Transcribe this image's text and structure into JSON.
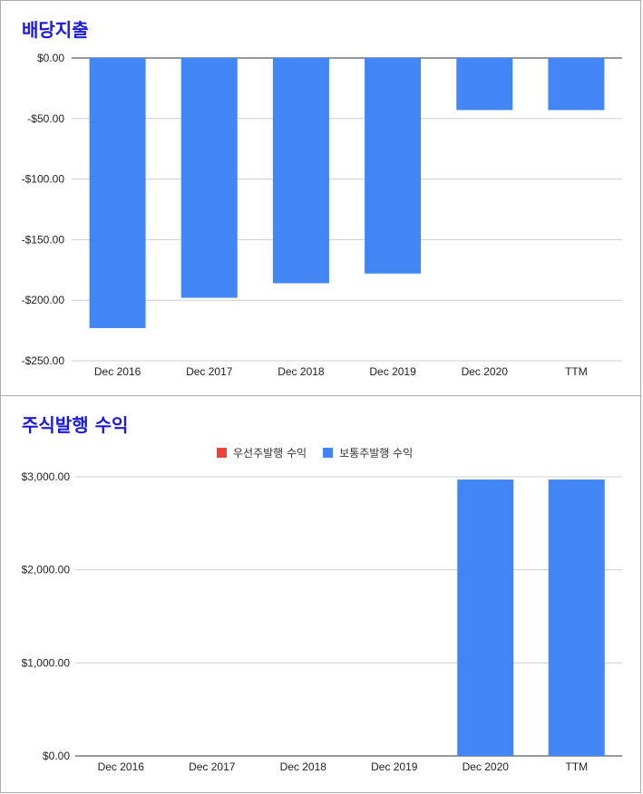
{
  "colors": {
    "title": "#1a1adc",
    "bar": "#4285f4",
    "preferred": "#ea4335",
    "grid": "#cccccc",
    "axis": "#333333"
  },
  "chart_data": [
    {
      "type": "bar",
      "title": "배당지출",
      "categories": [
        "Dec 2016",
        "Dec 2017",
        "Dec 2018",
        "Dec 2019",
        "Dec 2020",
        "TTM"
      ],
      "values": [
        -223,
        -198,
        -186,
        -178,
        -43,
        -43
      ],
      "ylim": [
        -250,
        0
      ],
      "yticks": [
        0,
        -50,
        -100,
        -150,
        -200,
        -250
      ],
      "ytick_labels": [
        "$0.00",
        "-$50.00",
        "-$100.00",
        "-$150.00",
        "-$200.00",
        "-$250.00"
      ],
      "xlabel": "",
      "ylabel": "",
      "grid": true
    },
    {
      "type": "bar",
      "title": "주식발행 수익",
      "categories": [
        "Dec 2016",
        "Dec 2017",
        "Dec 2018",
        "Dec 2019",
        "Dec 2020",
        "TTM"
      ],
      "series": [
        {
          "name": "우선주발행 수익",
          "values": [
            0,
            0,
            0,
            0,
            0,
            0
          ]
        },
        {
          "name": "보통주발행 수익",
          "values": [
            0,
            0,
            0,
            0,
            2970,
            2970
          ]
        }
      ],
      "ylim": [
        0,
        3000
      ],
      "yticks": [
        0,
        1000,
        2000,
        3000
      ],
      "ytick_labels": [
        "$0.00",
        "$1,000.00",
        "$2,000.00",
        "$3,000.00"
      ],
      "legend_position": "top",
      "xlabel": "",
      "ylabel": "",
      "grid": true
    }
  ]
}
